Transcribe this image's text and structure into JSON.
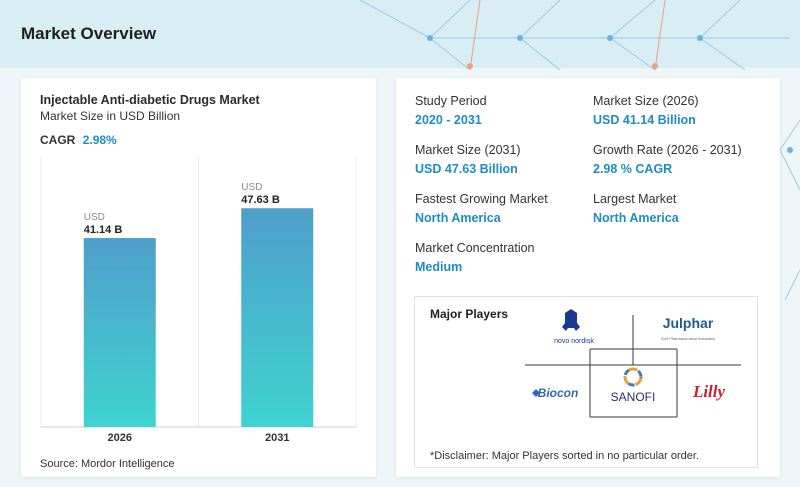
{
  "page": {
    "title": "Market Overview"
  },
  "chart_card": {
    "title": "Injectable Anti-diabetic Drugs Market",
    "subtitle": "Market Size in USD Billion",
    "cagr_label": "CAGR",
    "cagr_value": "2.98%",
    "source": "Source: Mordor Intelligence"
  },
  "chart_data": {
    "type": "bar",
    "categories": [
      "2026",
      "2031"
    ],
    "values": [
      41.14,
      47.63
    ],
    "value_prefix": "USD",
    "value_labels": [
      "41.14 B",
      "47.63 B"
    ],
    "title": "Injectable Anti-diabetic Drugs Market",
    "subtitle": "Market Size in USD Billion",
    "xlabel": "",
    "ylabel": "",
    "ylim": [
      0,
      59
    ],
    "grid": false,
    "colors": {
      "top": "#4f9ecb",
      "bottom": "#3fd3cf"
    }
  },
  "stats": [
    {
      "label": "Study Period",
      "value": "2020 - 2031"
    },
    {
      "label": "Market Size (2026)",
      "value": "USD 41.14 Billion"
    },
    {
      "label": "Market Size (2031)",
      "value": "USD 47.63 Billion"
    },
    {
      "label": "Growth Rate (2026 - 2031)",
      "value": "2.98 % CAGR"
    },
    {
      "label": "Fastest Growing Market",
      "value": "North America"
    },
    {
      "label": "Largest Market",
      "value": "North America"
    },
    {
      "label": "Market Concentration",
      "value": "Medium"
    }
  ],
  "players": {
    "title": "Major Players",
    "logos": [
      {
        "name": "novo nordisk",
        "icon": "novo-nordisk-bull-logo"
      },
      {
        "name": "Julphar",
        "sub": "Gulf Pharmaceutical Industries",
        "icon": "julphar-logo"
      },
      {
        "name": "Biocon",
        "icon": "biocon-logo"
      },
      {
        "name": "SANOFI",
        "icon": "sanofi-logo"
      },
      {
        "name": "Lilly",
        "icon": "lilly-logo"
      }
    ],
    "disclaimer": "*Disclaimer: Major Players sorted in no particular order."
  },
  "colors": {
    "accent": "#1f8dbf",
    "header": "#d9edf5"
  }
}
